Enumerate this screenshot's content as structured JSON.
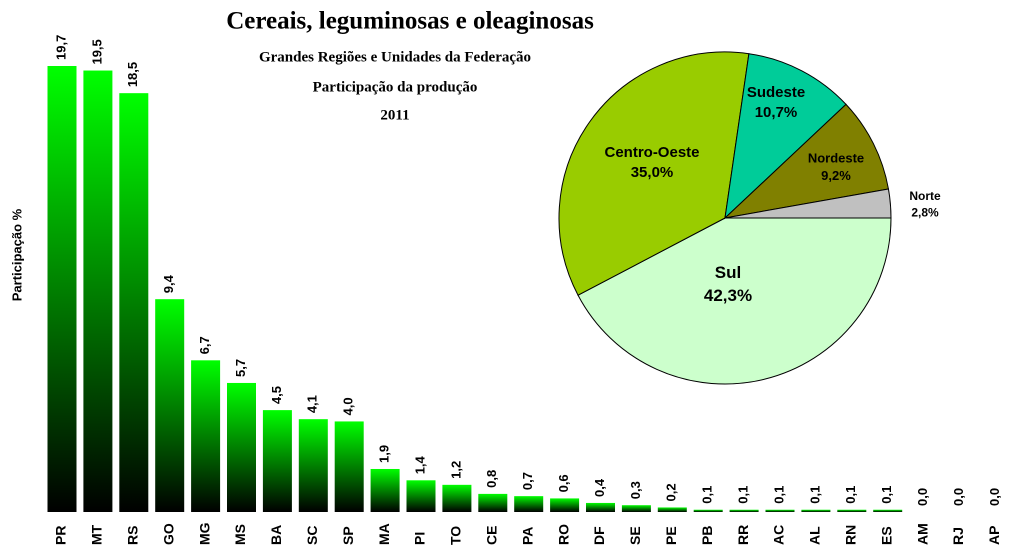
{
  "chart_data": [
    {
      "type": "bar",
      "title": "Cereais, leguminosas e oleaginosas",
      "subtitle": [
        "Grandes Regiões e Unidades da Federação",
        "Participação da  produção",
        "2011"
      ],
      "ylabel": "Participação %",
      "categories": [
        "PR",
        "MT",
        "RS",
        "GO",
        "MG",
        "MS",
        "BA",
        "SC",
        "SP",
        "MA",
        "PI",
        "TO",
        "CE",
        "PA",
        "RO",
        "DF",
        "SE",
        "PE",
        "PB",
        "RR",
        "AC",
        "AL",
        "RN",
        "ES",
        "AM",
        "RJ",
        "AP"
      ],
      "values": [
        19.7,
        19.5,
        18.5,
        9.4,
        6.7,
        5.7,
        4.5,
        4.1,
        4.0,
        1.9,
        1.4,
        1.2,
        0.8,
        0.7,
        0.6,
        0.4,
        0.3,
        0.2,
        0.1,
        0.1,
        0.1,
        0.1,
        0.1,
        0.1,
        0.0,
        0.0,
        0.0
      ],
      "value_labels": [
        "19,7",
        "19,5",
        "18,5",
        "9,4",
        "6,7",
        "5,7",
        "4,5",
        "4,1",
        "4,0",
        "1,9",
        "1,4",
        "1,2",
        "0,8",
        "0,7",
        "0,6",
        "0,4",
        "0,3",
        "0,2",
        "0,1",
        "0,1",
        "0,1",
        "0,1",
        "0,1",
        "0,1",
        "0,0",
        "0,0",
        "0,0"
      ],
      "color": "#00ff00"
    },
    {
      "type": "pie",
      "categories": [
        "Sul",
        "Centro-Oeste",
        "Sudeste",
        "Nordeste",
        "Norte"
      ],
      "values": [
        42.3,
        35.0,
        10.7,
        9.2,
        2.8
      ],
      "value_labels": [
        "42,3%",
        "35,0%",
        "10,7%",
        "9,2%",
        "2,8%"
      ],
      "colors": [
        "#ccffcc",
        "#99cc00",
        "#00cc99",
        "#808000",
        "#c0c0c0"
      ]
    }
  ]
}
